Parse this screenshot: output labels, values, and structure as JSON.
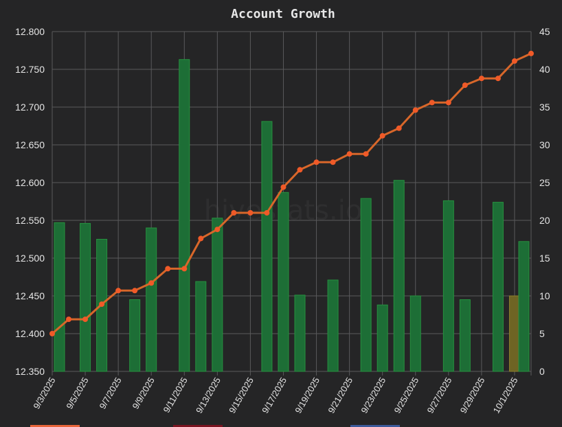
{
  "chart_data": {
    "type": "bar+line",
    "title": "Account Growth",
    "watermark": "hivestats.io",
    "grid": true,
    "x": [
      "9/3/2025",
      "9/4/2025",
      "9/5/2025",
      "9/6/2025",
      "9/7/2025",
      "9/8/2025",
      "9/9/2025",
      "9/10/2025",
      "9/11/2025",
      "9/12/2025",
      "9/13/2025",
      "9/14/2025",
      "9/15/2025",
      "9/16/2025",
      "9/17/2025",
      "9/18/2025",
      "9/19/2025",
      "9/20/2025",
      "9/21/2025",
      "9/22/2025",
      "9/23/2025",
      "9/24/2025",
      "9/25/2025",
      "9/26/2025",
      "9/27/2025",
      "9/28/2025",
      "9/29/2025",
      "9/30/2025",
      "10/1/2025",
      "10/2/2025"
    ],
    "x_tick_labels": [
      "9/3/2025",
      "9/5/2025",
      "9/7/2025",
      "9/9/2025",
      "9/11/2025",
      "9/13/2025",
      "9/15/2025",
      "9/17/2025",
      "9/19/2025",
      "9/21/2025",
      "9/23/2025",
      "9/25/2025",
      "9/27/2025",
      "9/29/2025",
      "10/1/2025"
    ],
    "y_left": {
      "ylim": [
        12.35,
        12.8
      ],
      "ticks": [
        "12.800",
        "12.750",
        "12.700",
        "12.650",
        "12.600",
        "12.550",
        "12.500",
        "12.450",
        "12.400",
        "12.350"
      ]
    },
    "y_right": {
      "ylim": [
        0,
        45
      ],
      "ticks": [
        "45",
        "40",
        "35",
        "30",
        "25",
        "20",
        "15",
        "10",
        "5",
        "0"
      ]
    },
    "bars": {
      "axis": "right",
      "values": [
        19.7,
        0,
        19.6,
        17.5,
        0,
        9.5,
        19.0,
        0,
        41.3,
        11.9,
        20.3,
        0,
        0,
        33.1,
        23.7,
        10.1,
        0,
        12.1,
        0,
        22.9,
        8.8,
        25.3,
        10.0,
        0,
        22.6,
        9.5,
        0,
        22.4,
        10.0,
        17.2
      ],
      "colors": [
        "green",
        "green",
        "green",
        "green",
        "green",
        "green",
        "green",
        "green",
        "green",
        "green",
        "green",
        "green",
        "green",
        "green",
        "green",
        "green",
        "green",
        "green",
        "green",
        "green",
        "green",
        "green",
        "green",
        "green",
        "green",
        "green",
        "green",
        "green",
        "olive",
        "green"
      ]
    },
    "line": {
      "axis": "left",
      "values": [
        12.4,
        12.419,
        12.419,
        12.439,
        12.457,
        12.457,
        12.467,
        12.486,
        12.486,
        12.526,
        12.538,
        12.56,
        12.56,
        12.56,
        12.594,
        12.617,
        12.627,
        12.627,
        12.638,
        12.638,
        12.662,
        12.672,
        12.696,
        12.706,
        12.706,
        12.729,
        12.738,
        12.738,
        12.761,
        12.771
      ]
    },
    "legend": {
      "placement": "bottom",
      "swatch_colors": [
        "#e8653a",
        "#7a1420",
        "#3c5a9a"
      ]
    },
    "colors": {
      "background": "#252526",
      "bar_green": "#1d6e36",
      "bar_green_edge": "#26913f",
      "bar_olive": "#6e6424",
      "bar_olive_edge": "#8c7f2c",
      "line": "#d8672a",
      "marker": "#f05a28"
    }
  }
}
